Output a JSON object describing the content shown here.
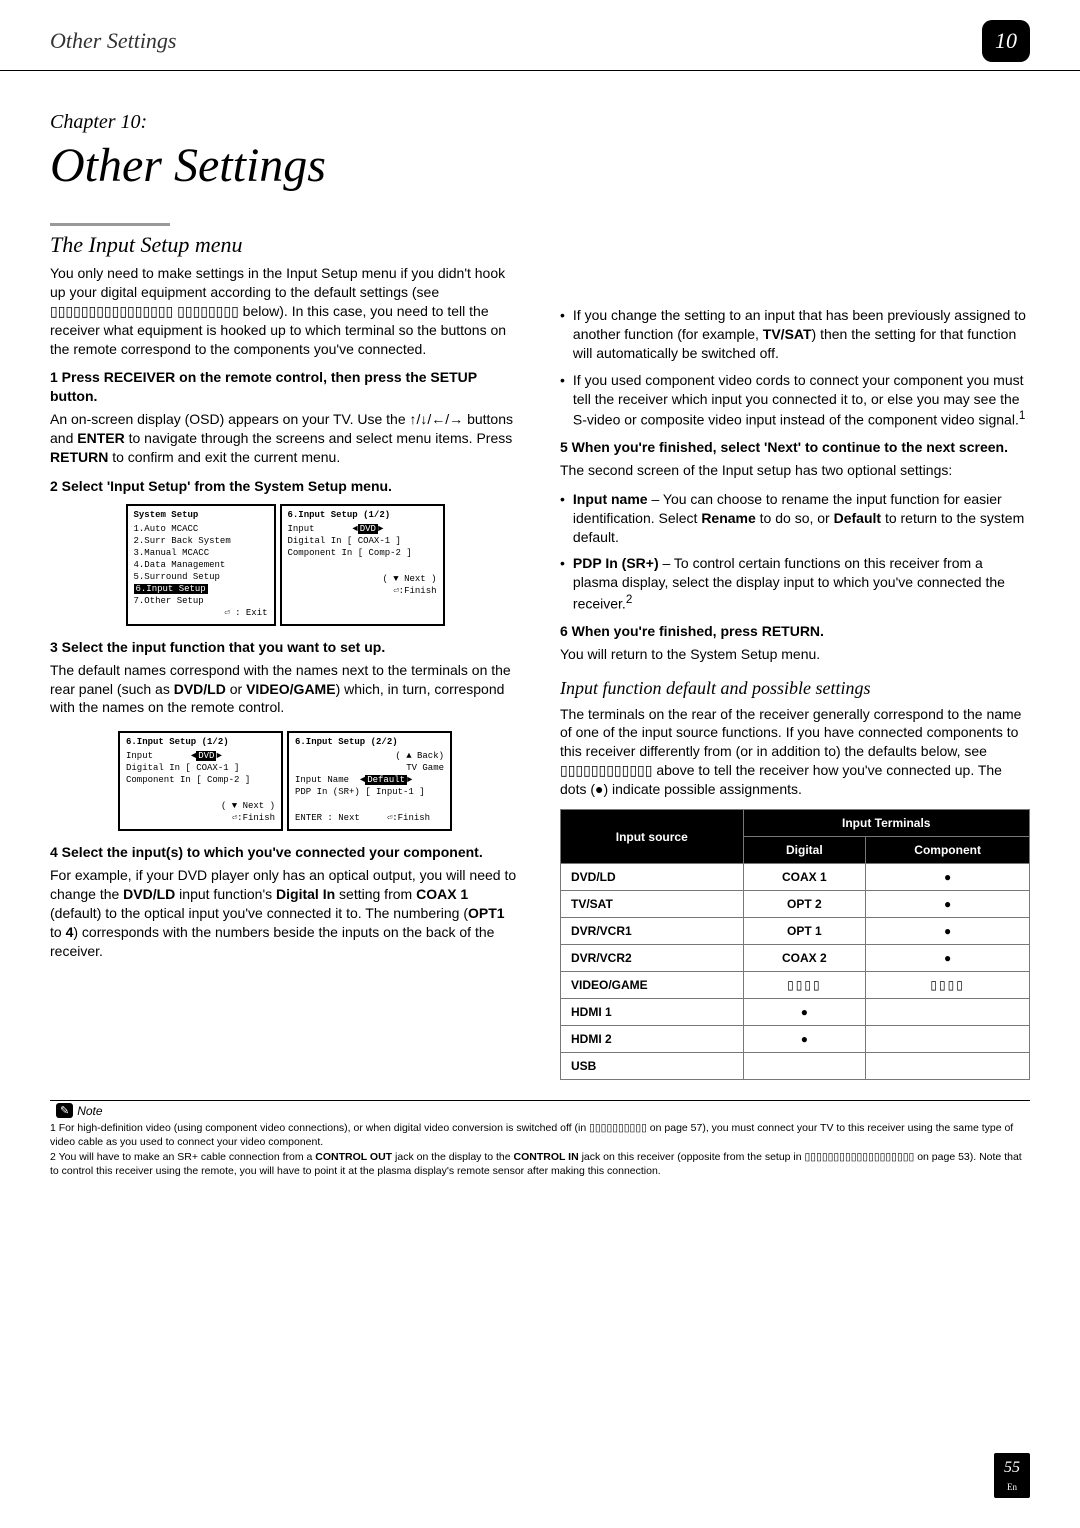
{
  "header": {
    "title": "Other Settings",
    "badge": "10"
  },
  "chapter": {
    "label": "Chapter 10:",
    "title": "Other Settings"
  },
  "left": {
    "section_title": "The Input Setup menu",
    "intro": "You only need to make settings in the Input Setup menu if you didn't hook up your digital equipment according to the default settings (see ▯▯▯▯▯▯▯▯▯▯▯▯▯▯▯▯ ▯▯▯▯▯▯▯▯ below). In this case, you need to tell the receiver what equipment is hooked up to which terminal so the buttons on the remote correspond to the components you've connected.",
    "step1": "1   Press RECEIVER on the remote control, then press the SETUP button.",
    "step1_body_a": "An on-screen display (OSD) appears on your TV. Use the ",
    "step1_body_b": " buttons and ",
    "step1_body_c": " to navigate through the screens and select menu items. Press ",
    "step1_body_d": " to confirm and exit the current menu.",
    "enter": "ENTER",
    "return": "RETURN",
    "arrows": "↑/↓/←/→",
    "step2": "2   Select 'Input Setup' from the System Setup menu.",
    "osd_a": {
      "title": "System Setup",
      "items": [
        "1.Auto MCACC",
        "2.Surr Back System",
        "3.Manual MCACC",
        "4.Data Management",
        "5.Surround Setup"
      ],
      "sel": "6.Input Setup",
      "after": "7.Other Setup",
      "foot": "⏎ : Exit"
    },
    "osd_b": {
      "title": "6.Input Setup           (1/2)",
      "r1": "Input",
      "r1v": "DVD",
      "r2": "Digital In     [ COAX-1  ]",
      "r3": "Component In [ Comp-2  ]",
      "foot1": "( ▼ Next )",
      "foot2": "⏎:Finish"
    },
    "step3": "3   Select the input function that you want to set up.",
    "step3_body_a": "The default names correspond with the names next to the terminals on the rear panel (such as ",
    "dvd_ld": "DVD/LD",
    "or": " or ",
    "video_game": "VIDEO/GAME",
    "step3_body_b": ") which, in turn, correspond with the names on the remote control.",
    "osd_c": {
      "title": "6.Input Setup           (1/2)",
      "r1": "Input",
      "r1v": "DVD",
      "r2": "Digital In     [ COAX-1  ]",
      "r3": "Component In [ Comp-2  ]",
      "foot1": "( ▼ Next )",
      "foot2": "⏎:Finish"
    },
    "osd_d": {
      "title": "6.Input Setup           (2/2)",
      "r0": "( ▲ Back)",
      "r1": "TV Game",
      "r2a": "Input Name",
      "r2b": "Default",
      "r3": "PDP In (SR+) [ Input-1 ]",
      "foot1": "ENTER : Next",
      "foot2": "⏎:Finish"
    },
    "step4": "4   Select the input(s) to which you've connected your component.",
    "step4_body_a": "For example, if your DVD player only has an optical output, you will need to change the ",
    "step4_body_b": " input function's ",
    "digital_in": "Digital In",
    "step4_body_c": " setting from ",
    "coax1": "COAX 1",
    "step4_body_d": " (default) to the optical input you've connected it to. The numbering (",
    "opt1": "OPT1",
    "to": " to ",
    "four": "4",
    "step4_body_e": ") corresponds with the numbers beside the inputs on the back of the receiver."
  },
  "right": {
    "b1_a": "If you change the setting to an input that has been previously assigned to another function (for example, ",
    "tvsat": "TV/SAT",
    "b1_b": ") then the setting for that function will automatically be switched off.",
    "b2": "If you used component video cords to connect your component you must tell the receiver which input you connected it to, or else you may see the S-video or composite video input instead of the component video signal.",
    "sup1": "1",
    "step5": "5   When you're finished, select 'Next' to continue to the next screen.",
    "step5_body": "The second screen of the Input setup has two optional settings:",
    "b3_label": "Input name",
    "b3_a": " – You can choose to rename the input function for easier identification. Select ",
    "rename": "Rename",
    "b3_b": " to do so, or ",
    "default": "Default",
    "b3_c": " to return to the system default.",
    "b4_label": "PDP In (SR+)",
    "b4_a": " – To control certain functions on this receiver from a plasma display, select the display input to which you've connected the receiver.",
    "sup2": "2",
    "step6": "6   When you're finished, press RETURN.",
    "step6_body": "You will return to the System Setup menu.",
    "sub_title": "Input function default and possible settings",
    "sub_body": "The terminals on the rear of the receiver generally correspond to the name of one of the input source functions. If you have connected components to this receiver differently from (or in addition to) the defaults below, see ▯▯▯▯▯▯▯▯▯▯▯▯ above to tell the receiver how you've connected up. The dots (●) indicate possible assignments.",
    "table": {
      "h1": "Input source",
      "h2": "Input Terminals",
      "h2a": "Digital",
      "h2b": "Component",
      "rows": [
        {
          "src": "DVD/LD",
          "dig": "COAX 1",
          "comp": "dot"
        },
        {
          "src": "TV/SAT",
          "dig": "OPT 2",
          "comp": "dot"
        },
        {
          "src": "DVR/VCR1",
          "dig": "OPT 1",
          "comp": "dot"
        },
        {
          "src": "DVR/VCR2",
          "dig": "COAX 2",
          "comp": "dot"
        },
        {
          "src": "VIDEO/GAME",
          "dig": "boxes",
          "comp": "boxes"
        },
        {
          "src": "HDMI 1",
          "dig": "dot",
          "comp": ""
        },
        {
          "src": "HDMI 2",
          "dig": "dot",
          "comp": ""
        },
        {
          "src": "USB",
          "dig": "",
          "comp": ""
        }
      ]
    }
  },
  "notes": {
    "label": "Note",
    "n1": "1 For high-definition video (using component video connections), or when digital video conversion is switched off (in ▯▯▯▯▯▯▯▯▯▯ on page 57), you must connect your TV to this receiver using the same type of video cable as you used to connect your video component.",
    "n2_a": "2 You will have to make an SR+ cable connection from a ",
    "ctrl_out": "CONTROL OUT",
    "n2_b": " jack on the display to the ",
    "ctrl_in": "CONTROL IN",
    "n2_c": " jack on this receiver (opposite from the setup in ▯▯▯▯▯▯▯▯▯▯▯▯▯▯▯▯▯▯▯ on page 53). Note that to control this receiver using the remote, you will have to point it at the plasma display's remote sensor after making this connection."
  },
  "page": {
    "num": "55",
    "lang": "En"
  }
}
